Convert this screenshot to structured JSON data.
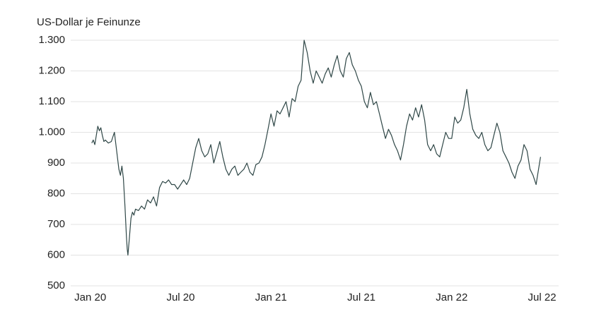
{
  "chart_data": {
    "type": "line",
    "y_label": "US-Dollar je Feinunze",
    "x": [
      0.1,
      0.2,
      0.3,
      0.4,
      0.5,
      0.6,
      0.7,
      0.8,
      0.9,
      1.0,
      1.2,
      1.4,
      1.5,
      1.6,
      1.7,
      1.8,
      1.9,
      2.0,
      2.1,
      2.2,
      2.3,
      2.4,
      2.45,
      2.5,
      2.6,
      2.7,
      2.8,
      2.9,
      3.0,
      3.2,
      3.4,
      3.6,
      3.8,
      4.0,
      4.2,
      4.4,
      4.6,
      4.8,
      5.0,
      5.2,
      5.4,
      5.6,
      5.8,
      6.0,
      6.2,
      6.4,
      6.6,
      6.8,
      7.0,
      7.2,
      7.4,
      7.6,
      7.8,
      8.0,
      8.2,
      8.4,
      8.6,
      8.8,
      9.0,
      9.2,
      9.4,
      9.6,
      9.8,
      10.0,
      10.2,
      10.4,
      10.6,
      10.8,
      11.0,
      11.2,
      11.4,
      11.6,
      11.8,
      12.0,
      12.2,
      12.4,
      12.6,
      12.8,
      13.0,
      13.2,
      13.4,
      13.6,
      13.8,
      14.0,
      14.1,
      14.2,
      14.4,
      14.6,
      14.8,
      15.0,
      15.2,
      15.4,
      15.6,
      15.8,
      16.0,
      16.2,
      16.4,
      16.6,
      16.8,
      17.0,
      17.2,
      17.4,
      17.6,
      17.8,
      18.0,
      18.2,
      18.4,
      18.6,
      18.8,
      19.0,
      19.2,
      19.4,
      19.6,
      19.8,
      20.0,
      20.2,
      20.4,
      20.6,
      20.8,
      21.0,
      21.2,
      21.4,
      21.6,
      21.8,
      22.0,
      22.2,
      22.4,
      22.6,
      22.8,
      23.0,
      23.2,
      23.4,
      23.6,
      23.8,
      24.0,
      24.2,
      24.4,
      24.6,
      24.8,
      25.0,
      25.2,
      25.4,
      25.6,
      25.8,
      26.0,
      26.2,
      26.4,
      26.6,
      26.8,
      27.0,
      27.2,
      27.4,
      27.6,
      27.8,
      28.0,
      28.2,
      28.4,
      28.6,
      28.8,
      29.0,
      29.2,
      29.4,
      29.6,
      29.8,
      29.9
    ],
    "series": [
      {
        "color": "#2f4747",
        "values": [
          965,
          975,
          960,
          990,
          1020,
          1005,
          1015,
          990,
          970,
          975,
          965,
          970,
          985,
          1000,
          960,
          920,
          880,
          860,
          890,
          850,
          760,
          660,
          620,
          600,
          660,
          720,
          740,
          730,
          750,
          745,
          760,
          750,
          780,
          770,
          790,
          760,
          820,
          840,
          835,
          845,
          830,
          830,
          815,
          830,
          845,
          830,
          850,
          900,
          950,
          980,
          940,
          920,
          930,
          960,
          900,
          935,
          970,
          920,
          880,
          860,
          880,
          890,
          860,
          870,
          880,
          900,
          870,
          860,
          895,
          900,
          920,
          960,
          1010,
          1060,
          1020,
          1070,
          1060,
          1080,
          1100,
          1050,
          1110,
          1100,
          1150,
          1170,
          1240,
          1300,
          1260,
          1200,
          1160,
          1200,
          1180,
          1160,
          1190,
          1210,
          1180,
          1220,
          1250,
          1200,
          1180,
          1240,
          1260,
          1220,
          1200,
          1170,
          1150,
          1100,
          1080,
          1130,
          1090,
          1100,
          1060,
          1020,
          980,
          1010,
          990,
          960,
          940,
          910,
          960,
          1020,
          1060,
          1040,
          1080,
          1050,
          1090,
          1040,
          960,
          940,
          960,
          930,
          920,
          960,
          1000,
          980,
          980,
          1050,
          1030,
          1040,
          1080,
          1140,
          1060,
          1010,
          990,
          980,
          1000,
          960,
          940,
          950,
          990,
          1030,
          1000,
          940,
          920,
          900,
          870,
          850,
          890,
          910,
          960,
          940,
          880,
          860,
          830,
          890,
          920
        ]
      }
    ],
    "xlim": [
      -1.3,
      31.1
    ],
    "xticks": [
      {
        "value": 0,
        "label": "Jan 20"
      },
      {
        "value": 6,
        "label": "Jul 20"
      },
      {
        "value": 12,
        "label": "Jan 21"
      },
      {
        "value": 18,
        "label": "Jul 21"
      },
      {
        "value": 24,
        "label": "Jan 22"
      },
      {
        "value": 30,
        "label": "Jul 22"
      }
    ],
    "ylim": [
      500,
      1300
    ],
    "yticks": [
      500,
      600,
      700,
      800,
      900,
      {
        "value": 1000,
        "label": "1.000"
      },
      {
        "value": 1100,
        "label": "1.100"
      },
      {
        "value": 1200,
        "label": "1.200"
      },
      {
        "value": 1300,
        "label": "1.300"
      }
    ],
    "grid": true
  }
}
